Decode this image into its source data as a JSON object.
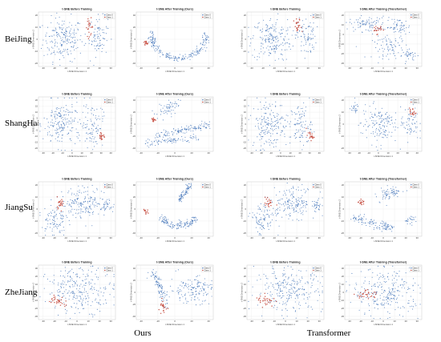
{
  "figure": {
    "row_labels": [
      "BeiJing",
      "ShangHai",
      "JiangSu",
      "ZheJiang"
    ],
    "group_labels": [
      "Ours",
      "Transformer"
    ]
  },
  "legend": {
    "class0": "Class 0",
    "class1": "Class 1"
  },
  "colors": {
    "class0": "#3b6fb6",
    "class1": "#c0392b"
  },
  "axes": {
    "xlabel": "t-SNE Dimension 1",
    "ylabel": "t-SNE Dimension 2"
  },
  "chart_data": [
    {
      "type": "scatter",
      "row": "BeiJing",
      "title": "t-SNE Before Training",
      "xticks": [
        "-30",
        "-20",
        "-10",
        "0",
        "10",
        "20",
        "30"
      ],
      "yticks": [
        "-20",
        "-10",
        "0",
        "10",
        "20"
      ],
      "xlim": [
        -35,
        35
      ],
      "ylim": [
        -25,
        25
      ]
    },
    {
      "type": "scatter",
      "row": "BeiJing",
      "title": "t-SNE After Training (Ours)",
      "xticks": [
        "-40",
        "-20",
        "0",
        "20",
        "40"
      ],
      "yticks": [
        "-40",
        "-20",
        "0",
        "20",
        "40"
      ],
      "xlim": [
        -45,
        45
      ],
      "ylim": [
        -45,
        45
      ]
    },
    {
      "type": "scatter",
      "row": "BeiJing",
      "title": "t-SNE Before Training",
      "xticks": [
        "-30",
        "-20",
        "-10",
        "0",
        "10",
        "20",
        "30"
      ],
      "yticks": [
        "-20",
        "-10",
        "0",
        "10",
        "20"
      ],
      "xlim": [
        -35,
        35
      ],
      "ylim": [
        -25,
        25
      ]
    },
    {
      "type": "scatter",
      "row": "BeiJing",
      "title": "t-SNE After Training (Transformer)",
      "xticks": [
        "-30",
        "-20",
        "-10",
        "0",
        "10",
        "20",
        "30"
      ],
      "yticks": [
        "-30",
        "-20",
        "-10",
        "0",
        "10",
        "20"
      ],
      "xlim": [
        -35,
        35
      ],
      "ylim": [
        -35,
        25
      ]
    },
    {
      "type": "scatter",
      "row": "ShangHai",
      "title": "t-SNE Before Training",
      "xticks": [
        "-30",
        "-20",
        "-10",
        "0",
        "10",
        "20",
        "30",
        "40"
      ],
      "yticks": [
        "-20",
        "-15",
        "-10",
        "-5",
        "0",
        "5",
        "10",
        "15",
        "20"
      ],
      "xlim": [
        -35,
        45
      ],
      "ylim": [
        -22,
        22
      ]
    },
    {
      "type": "scatter",
      "row": "ShangHai",
      "title": "t-SNE After Training (Ours)",
      "xticks": [
        "-40",
        "-20",
        "0",
        "20",
        "40"
      ],
      "yticks": [
        "-40",
        "-20",
        "0",
        "20",
        "40"
      ],
      "xlim": [
        -45,
        45
      ],
      "ylim": [
        -45,
        45
      ]
    },
    {
      "type": "scatter",
      "row": "ShangHai",
      "title": "t-SNE Before Training",
      "xticks": [
        "-30",
        "-20",
        "-10",
        "0",
        "10",
        "20",
        "30",
        "40"
      ],
      "yticks": [
        "-20",
        "-15",
        "-10",
        "-5",
        "0",
        "5",
        "10",
        "15",
        "20"
      ],
      "xlim": [
        -35,
        45
      ],
      "ylim": [
        -22,
        22
      ]
    },
    {
      "type": "scatter",
      "row": "ShangHai",
      "title": "t-SNE After Training (Transformer)",
      "xticks": [
        "-30",
        "-20",
        "-10",
        "0",
        "10",
        "20",
        "30",
        "40"
      ],
      "yticks": [
        "-20",
        "-10",
        "0",
        "10",
        "20"
      ],
      "xlim": [
        -35,
        45
      ],
      "ylim": [
        -25,
        25
      ]
    },
    {
      "type": "scatter",
      "row": "JiangSu",
      "title": "t-SNE Before Training",
      "xticks": [
        "-30",
        "-20",
        "-10",
        "0",
        "10",
        "20",
        "30"
      ],
      "yticks": [
        "-20",
        "-10",
        "0",
        "10",
        "20"
      ],
      "xlim": [
        -35,
        35
      ],
      "ylim": [
        -25,
        25
      ]
    },
    {
      "type": "scatter",
      "row": "JiangSu",
      "title": "t-SNE After Training (Ours)",
      "xticks": [
        "-40",
        "-20",
        "0",
        "20",
        "40"
      ],
      "yticks": [
        "-40",
        "-20",
        "0",
        "20",
        "40"
      ],
      "xlim": [
        -45,
        45
      ],
      "ylim": [
        -45,
        45
      ]
    },
    {
      "type": "scatter",
      "row": "JiangSu",
      "title": "t-SNE Before Training",
      "xticks": [
        "-30",
        "-20",
        "-10",
        "0",
        "10",
        "20",
        "30"
      ],
      "yticks": [
        "-20",
        "-10",
        "0",
        "10",
        "20"
      ],
      "xlim": [
        -35,
        35
      ],
      "ylim": [
        -25,
        25
      ]
    },
    {
      "type": "scatter",
      "row": "JiangSu",
      "title": "t-SNE After Training (Transformer)",
      "xticks": [
        "-30",
        "-20",
        "-10",
        "0",
        "10",
        "20",
        "30"
      ],
      "yticks": [
        "-20",
        "-10",
        "0",
        "10",
        "20"
      ],
      "xlim": [
        -35,
        35
      ],
      "ylim": [
        -25,
        25
      ]
    },
    {
      "type": "scatter",
      "row": "ZheJiang",
      "title": "t-SNE Before Training",
      "xticks": [
        "-30",
        "-20",
        "-10",
        "0",
        "10",
        "20",
        "30"
      ],
      "yticks": [
        "-30",
        "-20",
        "-10",
        "0",
        "10",
        "20",
        "30"
      ],
      "xlim": [
        -35,
        35
      ],
      "ylim": [
        -35,
        35
      ]
    },
    {
      "type": "scatter",
      "row": "ZheJiang",
      "title": "t-SNE After Training (Ours)",
      "xticks": [
        "-40",
        "-20",
        "0",
        "20",
        "40"
      ],
      "yticks": [
        "-40",
        "-20",
        "0",
        "20",
        "40"
      ],
      "xlim": [
        -45,
        45
      ],
      "ylim": [
        -45,
        45
      ]
    },
    {
      "type": "scatter",
      "row": "ZheJiang",
      "title": "t-SNE Before Training",
      "xticks": [
        "-30",
        "-20",
        "-10",
        "0",
        "10",
        "20",
        "30"
      ],
      "yticks": [
        "-30",
        "-20",
        "-10",
        "0",
        "10",
        "20",
        "30"
      ],
      "xlim": [
        -35,
        35
      ],
      "ylim": [
        -35,
        35
      ]
    },
    {
      "type": "scatter",
      "row": "ZheJiang",
      "title": "t-SNE After Training (Transformer)",
      "xticks": [
        "-30",
        "-20",
        "-10",
        "0",
        "10",
        "20",
        "30"
      ],
      "yticks": [
        "-30",
        "-20",
        "-10",
        "0",
        "10",
        "20",
        "30"
      ],
      "xlim": [
        -35,
        35
      ],
      "ylim": [
        -35,
        35
      ]
    }
  ]
}
